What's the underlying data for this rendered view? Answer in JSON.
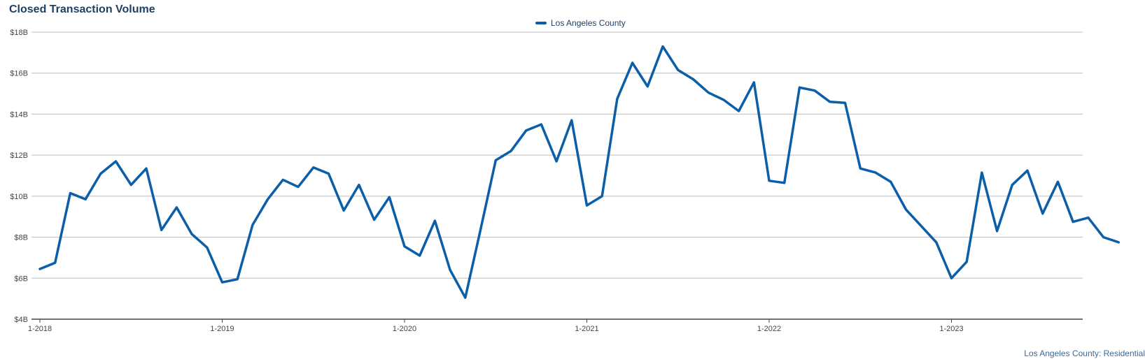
{
  "title": "Closed Transaction Volume",
  "footer_note": "Los Angeles County: Residential",
  "chart_data": {
    "type": "line",
    "title": "Closed Transaction Volume",
    "xlabel": "",
    "ylabel": "",
    "ylim": [
      4,
      18
    ],
    "y_ticks": [
      "$4B",
      "$6B",
      "$8B",
      "$10B",
      "$12B",
      "$14B",
      "$16B",
      "$18B"
    ],
    "y_tick_values": [
      4,
      6,
      8,
      10,
      12,
      14,
      16,
      18
    ],
    "x_ticks": [
      "1-2018",
      "1-2019",
      "1-2020",
      "1-2021",
      "1-2022",
      "1-2023"
    ],
    "grid": true,
    "legend_position": "top-center",
    "x": [
      "1-2018",
      "2-2018",
      "3-2018",
      "4-2018",
      "5-2018",
      "6-2018",
      "7-2018",
      "8-2018",
      "9-2018",
      "10-2018",
      "11-2018",
      "12-2018",
      "1-2019",
      "2-2019",
      "3-2019",
      "4-2019",
      "5-2019",
      "6-2019",
      "7-2019",
      "8-2019",
      "9-2019",
      "10-2019",
      "11-2019",
      "12-2019",
      "1-2020",
      "2-2020",
      "3-2020",
      "4-2020",
      "5-2020",
      "6-2020",
      "7-2020",
      "8-2020",
      "9-2020",
      "10-2020",
      "11-2020",
      "12-2020",
      "1-2021",
      "2-2021",
      "3-2021",
      "4-2021",
      "5-2021",
      "6-2021",
      "7-2021",
      "8-2021",
      "9-2021",
      "10-2021",
      "11-2021",
      "12-2021",
      "1-2022",
      "2-2022",
      "3-2022",
      "4-2022",
      "5-2022",
      "6-2022",
      "7-2022",
      "8-2022",
      "9-2022",
      "10-2022",
      "11-2022",
      "12-2022",
      "1-2023",
      "2-2023",
      "3-2023",
      "4-2023",
      "5-2023",
      "6-2023",
      "7-2023",
      "8-2023",
      "9-2023",
      "10-2023",
      "11-2023",
      "12-2023"
    ],
    "series": [
      {
        "name": "Los Angeles County",
        "color": "#0b5ea8",
        "values": [
          6.45,
          6.75,
          10.15,
          9.85,
          11.1,
          11.7,
          10.55,
          11.35,
          8.35,
          9.45,
          8.15,
          7.5,
          5.8,
          5.95,
          8.6,
          9.85,
          10.8,
          10.45,
          11.4,
          11.1,
          9.3,
          10.55,
          8.85,
          9.95,
          7.55,
          7.1,
          8.8,
          6.4,
          5.05,
          8.35,
          11.75,
          12.2,
          13.2,
          13.5,
          11.7,
          13.7,
          9.55,
          10.0,
          14.75,
          16.5,
          15.35,
          17.3,
          16.15,
          15.7,
          15.05,
          14.7,
          14.15,
          15.55,
          10.75,
          10.65,
          15.3,
          15.15,
          14.6,
          14.55,
          11.35,
          11.15,
          10.7,
          9.35,
          8.55,
          7.75,
          6.0,
          6.8,
          11.15,
          8.3,
          10.55,
          11.25,
          9.15,
          10.7,
          8.75,
          8.95,
          8.0,
          7.75
        ]
      }
    ]
  }
}
